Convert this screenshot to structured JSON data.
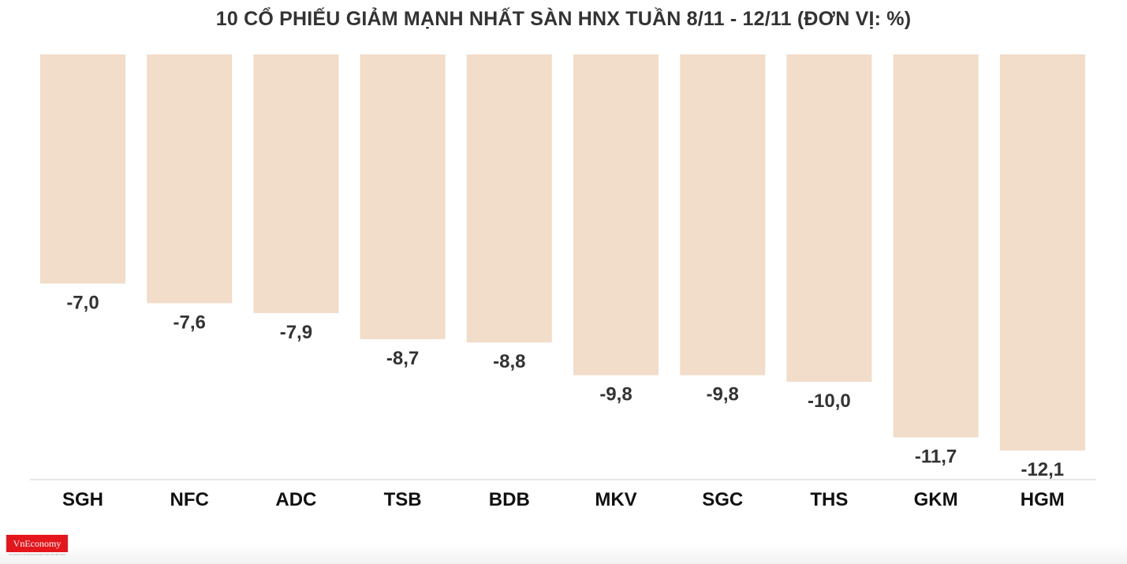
{
  "chart_data": {
    "type": "bar",
    "title": "10 CỔ PHIẾU GIẢM MẠNH NHẤT SÀN HNX TUẦN 8/11 - 12/11 (ĐƠN VỊ: %)",
    "categories": [
      "SGH",
      "NFC",
      "ADC",
      "TSB",
      "BDB",
      "MKV",
      "SGC",
      "THS",
      "GKM",
      "HGM"
    ],
    "values": [
      -7.0,
      -7.6,
      -7.9,
      -8.7,
      -8.8,
      -9.8,
      -9.8,
      -10.0,
      -11.7,
      -12.1
    ],
    "value_labels": [
      "-7,0",
      "-7,6",
      "-7,9",
      "-8,7",
      "-8,8",
      "-9,8",
      "-9,8",
      "-10,0",
      "-11,7",
      "-12,1"
    ],
    "xlabel": "",
    "ylabel": "",
    "ylim": [
      -12.9,
      0
    ],
    "grid": false,
    "legend": "none",
    "colors": {
      "bar": "#f2dcca",
      "label": "#333333",
      "axis": "#dddddd"
    }
  },
  "logo": {
    "text": "VnEconomy",
    "tagline": "CƠ QUAN CỦA HỘI KHOA HỌC KINH TẾ VIỆT NAM",
    "color": "#e5161b"
  }
}
